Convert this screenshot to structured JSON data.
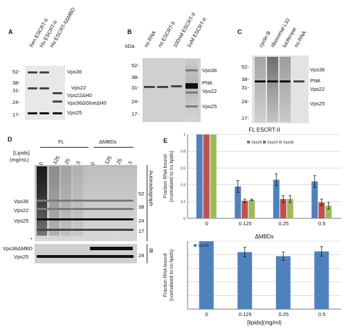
{
  "panels": {
    "A": {
      "letter": "A",
      "lanes": [
        "Xen ESCRT-II",
        "Hu ESCRT-II",
        "Hu ESCRT-IIΔMBD"
      ],
      "markers": [
        "52-",
        "38-",
        "31-",
        "24-",
        "17-"
      ],
      "bands": [
        "Vps36",
        "Vps22",
        "Vps22ΔH0",
        "Vps36ΔGlueΔH0",
        "Vps25"
      ]
    },
    "B": {
      "letter": "B",
      "unit": "kDa",
      "lanes": [
        "no RNA",
        "no ESCRT-II",
        "100nM ESCRT-II",
        "1uM ESCRT-II"
      ],
      "markers": [
        "52-",
        "38-",
        "31-",
        "24-",
        "17-"
      ],
      "bands": [
        "Vps36",
        "PNK",
        "Vps22",
        "Vps25"
      ]
    },
    "C": {
      "letter": "C",
      "lanes": [
        "cyclin B",
        "ribosomal L10",
        "luciferase",
        "no RNA"
      ],
      "markers": [
        "52-",
        "38-",
        "31-",
        "24-",
        "17-"
      ],
      "bands": [
        "Vps36",
        "PNK",
        "Vps22",
        "Vps25"
      ]
    },
    "D": {
      "letter": "D",
      "group_fl": "FL",
      "group_dmbd": "ΔMBDs",
      "lipid_label": "[Lipids]",
      "lipid_unit": "(mg/mL)",
      "concs": [
        "0",
        "0.125",
        "0.25",
        "0.5",
        "0",
        "0.125",
        "0.25",
        "0.5"
      ],
      "left_labels": [
        "Vps36",
        "Vps22",
        "Vps25"
      ],
      "right_markers": [
        "52",
        "38",
        "24",
        "17"
      ],
      "star": "*",
      "side_autorad": "Autoradiograph",
      "side_ib": "IB",
      "ib_labels": [
        "Vps36ΔMBD",
        "Vps25"
      ],
      "ib_marker": "24"
    },
    "E": {
      "letter": "E"
    }
  },
  "chart_data": [
    {
      "type": "bar",
      "title": "FL ESCRT-II",
      "categories": [
        "0",
        "0.125",
        "0.25",
        "0.5"
      ],
      "series": [
        {
          "name": "Vps25",
          "color": "#4f81bd",
          "values": [
            1.0,
            0.38,
            0.46,
            0.44
          ],
          "errors": [
            0,
            0.07,
            0.07,
            0.07
          ]
        },
        {
          "name": "Vps22",
          "color": "#c0504d",
          "values": [
            1.0,
            0.21,
            0.23,
            0.19
          ],
          "errors": [
            0,
            0.02,
            0.04,
            0.04
          ]
        },
        {
          "name": "Vps36",
          "color": "#9bbb59",
          "values": [
            1.0,
            0.22,
            0.23,
            0.15
          ],
          "errors": [
            0,
            0.01,
            0.04,
            0.04
          ]
        }
      ],
      "ylabel": "Fraction RNA bound (normalized to no lipids)",
      "ylim": [
        0,
        1
      ],
      "yticks": [
        "0",
        "0.2",
        "0.4",
        "0.6",
        "0.8",
        "1"
      ],
      "grid": true,
      "legend": "top-center"
    },
    {
      "type": "bar",
      "title": "ΔMBDs",
      "categories": [
        "0",
        "0.125",
        "0.25",
        "0.5"
      ],
      "series": [
        {
          "name": "Vps25",
          "color": "#4f81bd",
          "values": [
            1.0,
            0.84,
            0.78,
            0.85
          ],
          "errors": [
            0,
            0.07,
            0.06,
            0.07
          ]
        }
      ],
      "xlabel": "[lipids](mg/ml)",
      "ylabel": "Fraction RNA bound (normalized to no lipids)",
      "ylim": [
        0,
        1
      ],
      "grid": true,
      "legend": "top-left"
    }
  ]
}
